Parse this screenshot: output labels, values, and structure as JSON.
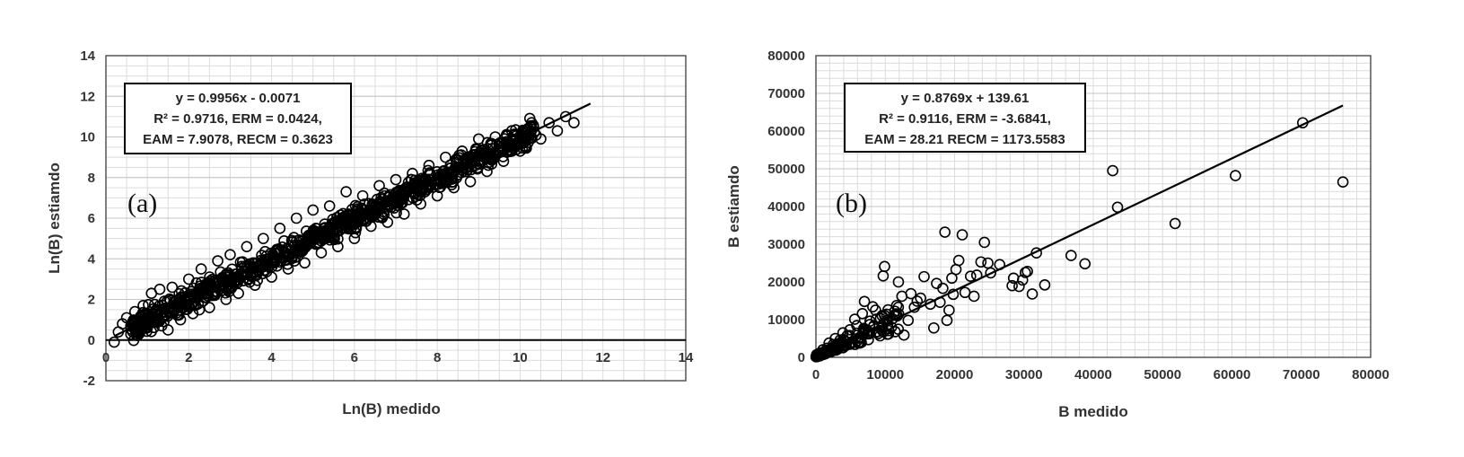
{
  "chart_data": [
    {
      "type": "scatter",
      "panel_label": "(a)",
      "xlabel": "Ln(B) medido",
      "ylabel": "Ln(B) estiamdo",
      "xlim": [
        0,
        14
      ],
      "ylim": [
        -2,
        14
      ],
      "x_ticks": [
        "0",
        "2",
        "4",
        "6",
        "8",
        "10",
        "12",
        "14"
      ],
      "y_ticks": [
        "-2",
        "0",
        "2",
        "4",
        "6",
        "8",
        "10",
        "12",
        "14"
      ],
      "equation_lines": [
        "y = 0.9956x - 0.0071",
        "R² = 0.9716, ERM = 0.0424,",
        "EAM = 7.9078, RECM = 0.3623"
      ],
      "fit": {
        "slope": 0.9956,
        "intercept": -0.0071,
        "x_range": [
          0.2,
          11.7
        ]
      },
      "grid": true,
      "series": [
        {
          "marker": "open-circle",
          "points": [
            [
              0.2,
              -0.1
            ],
            [
              0.3,
              0.4
            ],
            [
              0.4,
              0.8
            ],
            [
              0.5,
              1.1
            ],
            [
              0.6,
              0.7
            ],
            [
              0.7,
              1.4
            ],
            [
              0.8,
              0.3
            ],
            [
              0.9,
              1.7
            ],
            [
              1.0,
              0.6
            ],
            [
              1.1,
              2.3
            ],
            [
              1.2,
              0.9
            ],
            [
              1.3,
              2.5
            ],
            [
              1.5,
              0.5
            ],
            [
              1.6,
              2.6
            ],
            [
              1.8,
              1.0
            ],
            [
              2.0,
              3.0
            ],
            [
              2.1,
              1.3
            ],
            [
              2.3,
              3.5
            ],
            [
              2.5,
              1.6
            ],
            [
              2.7,
              3.9
            ],
            [
              2.9,
              2.0
            ],
            [
              3.0,
              4.2
            ],
            [
              3.2,
              2.3
            ],
            [
              3.4,
              4.6
            ],
            [
              3.6,
              2.7
            ],
            [
              3.8,
              5.0
            ],
            [
              4.0,
              3.1
            ],
            [
              4.2,
              5.5
            ],
            [
              4.4,
              3.5
            ],
            [
              4.6,
              6.0
            ],
            [
              4.8,
              3.8
            ],
            [
              5.0,
              6.4
            ],
            [
              5.2,
              4.3
            ],
            [
              5.4,
              6.6
            ],
            [
              5.6,
              4.6
            ],
            [
              5.8,
              7.3
            ],
            [
              6.0,
              5.0
            ],
            [
              6.2,
              7.1
            ],
            [
              6.4,
              5.6
            ],
            [
              6.6,
              7.6
            ],
            [
              6.8,
              5.8
            ],
            [
              7.0,
              7.9
            ],
            [
              7.2,
              6.2
            ],
            [
              7.4,
              8.2
            ],
            [
              7.6,
              6.7
            ],
            [
              7.8,
              8.6
            ],
            [
              8.0,
              7.1
            ],
            [
              8.2,
              9.0
            ],
            [
              8.4,
              7.5
            ],
            [
              8.6,
              9.3
            ],
            [
              8.8,
              7.8
            ],
            [
              9.0,
              9.9
            ],
            [
              9.2,
              8.3
            ],
            [
              9.4,
              10.0
            ],
            [
              9.6,
              8.8
            ],
            [
              9.8,
              10.3
            ],
            [
              10.0,
              9.3
            ],
            [
              10.2,
              10.1
            ],
            [
              10.5,
              9.9
            ],
            [
              10.7,
              10.7
            ],
            [
              10.9,
              10.3
            ],
            [
              11.1,
              11.0
            ],
            [
              11.3,
              10.7
            ]
          ]
        }
      ]
    },
    {
      "type": "scatter",
      "panel_label": "(b)",
      "xlabel": "B medido",
      "ylabel": "B estiamdo",
      "xlim": [
        0,
        80000
      ],
      "ylim": [
        0,
        80000
      ],
      "x_ticks": [
        "0",
        "10000",
        "20000",
        "30000",
        "40000",
        "50000",
        "60000",
        "70000",
        "80000"
      ],
      "y_ticks": [
        "0",
        "10000",
        "20000",
        "30000",
        "40000",
        "50000",
        "60000",
        "70000",
        "80000"
      ],
      "equation_lines": [
        "y = 0.8769x + 139.61",
        "R² = 0.9116, ERM = -3.6841,",
        "EAM = 28.21 RECM = 1173.5583"
      ],
      "fit": {
        "slope": 0.8769,
        "intercept": 139.61,
        "x_range": [
          0,
          76000
        ]
      },
      "grid": true,
      "series": [
        {
          "marker": "open-circle",
          "points": [
            [
              70200,
              62200
            ],
            [
              76000,
              46500
            ],
            [
              60500,
              48200
            ],
            [
              51800,
              35500
            ],
            [
              43500,
              39800
            ],
            [
              42800,
              49500
            ],
            [
              38800,
              24800
            ],
            [
              36800,
              27000
            ],
            [
              33000,
              19200
            ],
            [
              31800,
              27700
            ],
            [
              31200,
              16800
            ],
            [
              30500,
              22800
            ],
            [
              30200,
              22500
            ],
            [
              29800,
              20500
            ],
            [
              29300,
              18800
            ],
            [
              28500,
              21000
            ],
            [
              28300,
              19000
            ],
            [
              26500,
              24600
            ],
            [
              25200,
              22400
            ],
            [
              24800,
              25000
            ],
            [
              24300,
              30500
            ],
            [
              23800,
              25300
            ],
            [
              23200,
              21800
            ],
            [
              22800,
              16200
            ],
            [
              22300,
              21500
            ],
            [
              21500,
              17200
            ],
            [
              21100,
              32500
            ],
            [
              20600,
              25700
            ],
            [
              20200,
              23300
            ],
            [
              19800,
              16700
            ],
            [
              19600,
              21000
            ],
            [
              19200,
              12500
            ],
            [
              18900,
              9800
            ],
            [
              18600,
              33200
            ],
            [
              18300,
              18300
            ],
            [
              17900,
              14600
            ],
            [
              17400,
              19600
            ],
            [
              17000,
              7800
            ],
            [
              16500,
              14100
            ],
            [
              15600,
              21400
            ],
            [
              15100,
              15700
            ],
            [
              14600,
              14900
            ],
            [
              14200,
              13300
            ],
            [
              13700,
              16900
            ],
            [
              13300,
              9800
            ],
            [
              12700,
              5900
            ],
            [
              12400,
              16200
            ],
            [
              11900,
              20000
            ],
            [
              11500,
              11400
            ],
            [
              10900,
              8000
            ],
            [
              10400,
              12600
            ],
            [
              9900,
              24100
            ],
            [
              9700,
              21600
            ],
            [
              9300,
              10300
            ],
            [
              8900,
              6800
            ],
            [
              8600,
              12500
            ],
            [
              8200,
              13400
            ],
            [
              7800,
              9600
            ],
            [
              7400,
              6200
            ],
            [
              7000,
              14800
            ],
            [
              6700,
              11600
            ],
            [
              6300,
              5300
            ],
            [
              5900,
              8400
            ],
            [
              5600,
              10100
            ],
            [
              5200,
              4100
            ],
            [
              4900,
              7300
            ],
            [
              4500,
              5700
            ],
            [
              4200,
              3000
            ],
            [
              3900,
              6500
            ],
            [
              3500,
              4600
            ],
            [
              3100,
              2100
            ],
            [
              2800,
              5000
            ],
            [
              2500,
              3400
            ],
            [
              2200,
              1500
            ],
            [
              1900,
              3800
            ],
            [
              1600,
              2400
            ],
            [
              1300,
              900
            ],
            [
              1000,
              2000
            ],
            [
              800,
              1200
            ],
            [
              600,
              400
            ],
            [
              400,
              1000
            ],
            [
              300,
              600
            ],
            [
              200,
              200
            ],
            [
              100,
              700
            ]
          ]
        }
      ]
    }
  ]
}
